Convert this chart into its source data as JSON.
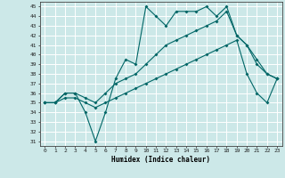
{
  "xlabel": "Humidex (Indice chaleur)",
  "xlim": [
    -0.5,
    23.5
  ],
  "ylim": [
    30.5,
    45.5
  ],
  "yticks": [
    31,
    32,
    33,
    34,
    35,
    36,
    37,
    38,
    39,
    40,
    41,
    42,
    43,
    44,
    45
  ],
  "xticks": [
    0,
    1,
    2,
    3,
    4,
    5,
    6,
    7,
    8,
    9,
    10,
    11,
    12,
    13,
    14,
    15,
    16,
    17,
    18,
    19,
    20,
    21,
    22,
    23
  ],
  "bg_color": "#cce8e8",
  "grid_color": "#ffffff",
  "line_color": "#006666",
  "line1_x": [
    0,
    1,
    2,
    3,
    4,
    5,
    6,
    7,
    8,
    9,
    10,
    11,
    12,
    13,
    14,
    15,
    16,
    17,
    18,
    19,
    20,
    21,
    22,
    23
  ],
  "line1_y": [
    35,
    35,
    36,
    36,
    34,
    31,
    34,
    37.5,
    39.5,
    39,
    45,
    44,
    43,
    44.5,
    44.5,
    44.5,
    45,
    44,
    45,
    42,
    41,
    39,
    38,
    37.5
  ],
  "line2_x": [
    0,
    1,
    2,
    3,
    4,
    5,
    6,
    7,
    8,
    9,
    10,
    11,
    12,
    13,
    14,
    15,
    16,
    17,
    18,
    19,
    20,
    21,
    22,
    23
  ],
  "line2_y": [
    35,
    35,
    36,
    36,
    35.5,
    35,
    36,
    37,
    37.5,
    38,
    39,
    40,
    41,
    41.5,
    42,
    42.5,
    43,
    43.5,
    44.5,
    42,
    41,
    39.5,
    38,
    37.5
  ],
  "line3_x": [
    0,
    1,
    2,
    3,
    4,
    5,
    6,
    7,
    8,
    9,
    10,
    11,
    12,
    13,
    14,
    15,
    16,
    17,
    18,
    19,
    20,
    21,
    22,
    23
  ],
  "line3_y": [
    35,
    35,
    35.5,
    35.5,
    35,
    34.5,
    35,
    35.5,
    36,
    36.5,
    37,
    37.5,
    38,
    38.5,
    39,
    39.5,
    40,
    40.5,
    41,
    41.5,
    38,
    36,
    35,
    37.5
  ]
}
